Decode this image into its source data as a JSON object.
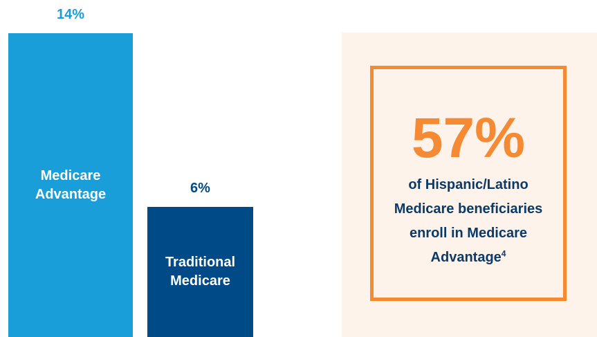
{
  "chart_data": {
    "type": "bar",
    "categories": [
      "Medicare Advantage",
      "Traditional Medicare"
    ],
    "values": [
      14,
      6
    ],
    "value_labels": [
      "14%",
      "6%"
    ],
    "colors": [
      "#199ed9",
      "#004b87"
    ],
    "callout": {
      "value": 57,
      "value_label": "57%",
      "text": "of Hispanic/Latino Medicare beneficiaries enroll in Medicare Advantage",
      "footnote": "4"
    }
  }
}
